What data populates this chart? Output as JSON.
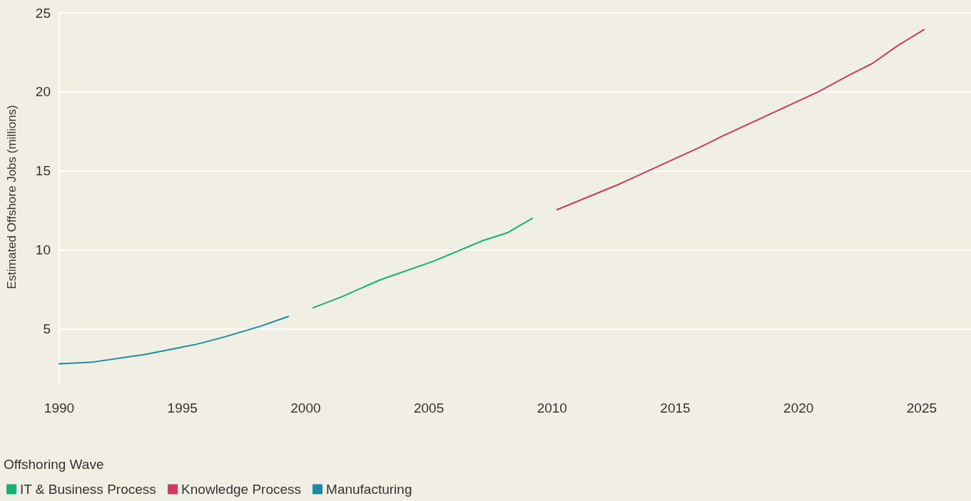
{
  "chart_data": {
    "type": "line",
    "ylabel": "Estimated Offshore Jobs (millions)",
    "legend_title": "Offshoring Wave",
    "legend": "bottom left",
    "grid": "y",
    "marker": "none",
    "line_style": "solid",
    "xlim": [
      1990,
      2027
    ],
    "xticks": [
      1990,
      1995,
      2000,
      2005,
      2010,
      2015,
      2020,
      2025
    ],
    "ylim": [
      1.7,
      25
    ],
    "yticks": [
      5,
      10,
      15,
      20,
      25
    ],
    "series": [
      {
        "name": "IT & Business Process",
        "color": "#14b077",
        "x": [
          2000.3,
          2001.4,
          2003,
          2005.2,
          2007.2,
          2008.2,
          2009.2
        ],
        "values": [
          6.35,
          7.0,
          8.1,
          9.3,
          10.6,
          11.1,
          12.0
        ]
      },
      {
        "name": "Knowledge Process",
        "color": "#cc3a60",
        "x": [
          2010.2,
          2012.7,
          2016,
          2016.9,
          2020.8,
          2022.1,
          2023,
          2024,
          2025.1
        ],
        "values": [
          12.55,
          14.15,
          16.5,
          17.2,
          20.0,
          21.1,
          21.8,
          22.9,
          23.95
        ]
      },
      {
        "name": "Manufacturing",
        "color": "#1a8aa6",
        "x": [
          1990,
          1991.3,
          1993.5,
          1995.6,
          1996.7,
          1998.2,
          1999.3
        ],
        "values": [
          2.8,
          2.9,
          3.4,
          4.05,
          4.5,
          5.2,
          5.8
        ]
      }
    ]
  }
}
